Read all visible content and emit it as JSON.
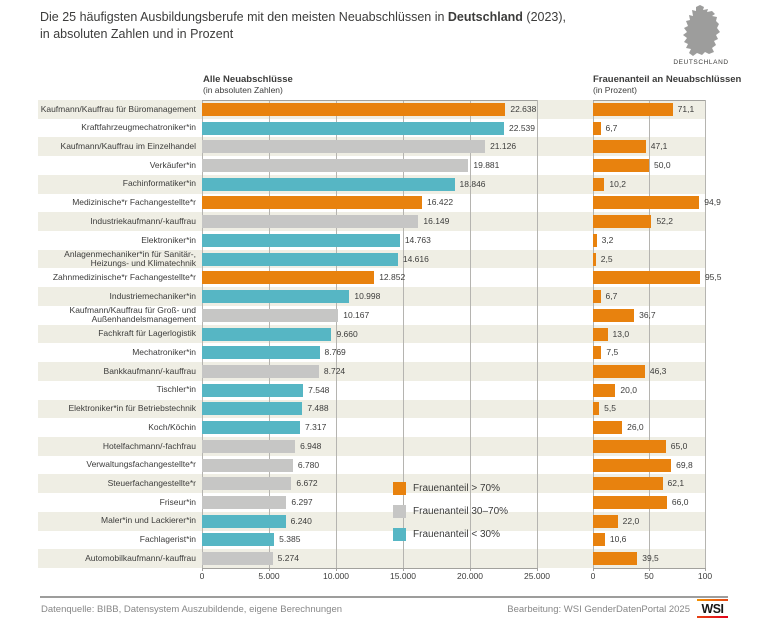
{
  "header": {
    "title_part1": "Die 25 häufigsten Ausbildungsberufe mit den meisten Neuabschlüssen in",
    "title_bold": "Deutschland",
    "title_part2": "(2023),",
    "title_line2": "in absoluten Zahlen und in Prozent",
    "region_label": "DEUTSCHLAND"
  },
  "chart_data": {
    "type": "bar",
    "orientation": "horizontal",
    "title": "Die 25 häufigsten Ausbildungsberufe mit den meisten Neuabschlüssen in Deutschland (2023), in absoluten Zahlen und in Prozent",
    "categories": [
      "Kaufmann/Kauffrau für Büromanagement",
      "Kraftfahrzeugmechatroniker*in",
      "Kaufmann/Kauffrau im Einzelhandel",
      "Verkäufer*in",
      "Fachinformatiker*in",
      "Medizinische*r Fachangestellte*r",
      "Industriekaufmann/-kauffrau",
      "Elektroniker*in",
      "Anlagenmechaniker*in für Sanitär-,\nHeizungs- und Klimatechnik",
      "Zahnmedizinische*r Fachangestellte*r",
      "Industriemechaniker*in",
      "Kaufmann/Kauffrau für Groß- und\nAußenhandelsmanagement",
      "Fachkraft für Lagerlogistik",
      "Mechatroniker*in",
      "Bankkaufmann/-kauffrau",
      "Tischler*in",
      "Elektroniker*in für Betriebstechnik",
      "Koch/Köchin",
      "Hotelfachmann/-fachfrau",
      "Verwaltungsfachangestellte*r",
      "Steuerfachangestellte*r",
      "Friseur*in",
      "Maler*in und Lackierer*in",
      "Fachlagerist*in",
      "Automobilkaufmann/-kauffrau"
    ],
    "groups": [
      "high",
      "low",
      "mid",
      "mid",
      "low",
      "high",
      "mid",
      "low",
      "low",
      "high",
      "low",
      "mid",
      "low",
      "low",
      "mid",
      "low",
      "low",
      "low",
      "mid",
      "mid",
      "mid",
      "mid",
      "low",
      "low",
      "mid"
    ],
    "group_colors": {
      "high": "#e8820e",
      "mid": "#c6c6c5",
      "low": "#56b6c4"
    },
    "series": [
      {
        "name": "Alle Neuabschlüsse",
        "subtitle": "(in absoluten Zahlen)",
        "values": [
          22638,
          22539,
          21126,
          19881,
          18846,
          16422,
          16149,
          14763,
          14616,
          12852,
          10998,
          10167,
          9660,
          8769,
          8724,
          7548,
          7488,
          7317,
          6948,
          6780,
          6672,
          6297,
          6240,
          5385,
          5274
        ],
        "value_labels": [
          "22.638",
          "22.539",
          "21.126",
          "19.881",
          "18.846",
          "16.422",
          "16.149",
          "14.763",
          "14.616",
          "12.852",
          "10.998",
          "10.167",
          "9.660",
          "8.769",
          "8.724",
          "7.548",
          "7.488",
          "7.317",
          "6.948",
          "6.780",
          "6.672",
          "6.297",
          "6.240",
          "5.385",
          "5.274"
        ],
        "xlim": [
          0,
          25000
        ],
        "ticks": [
          "0",
          "5.000",
          "10.000",
          "15.000",
          "20.000",
          "25.000"
        ]
      },
      {
        "name": "Frauenanteil an Neuabschlüssen",
        "subtitle": "(in Prozent)",
        "values": [
          71.1,
          6.7,
          47.1,
          50.0,
          10.2,
          94.9,
          52.2,
          3.2,
          2.5,
          95.5,
          6.7,
          36.7,
          13.0,
          7.5,
          46.3,
          20.0,
          5.5,
          26.0,
          65.0,
          69.8,
          62.1,
          66.0,
          22.0,
          10.6,
          39.5
        ],
        "value_labels": [
          "71,1",
          "6,7",
          "47,1",
          "50,0",
          "10,2",
          "94,9",
          "52,2",
          "3,2",
          "2,5",
          "95,5",
          "6,7",
          "36,7",
          "13,0",
          "7,5",
          "46,3",
          "20,0",
          "5,5",
          "26,0",
          "65,0",
          "69,8",
          "62,1",
          "66,0",
          "22,0",
          "10,6",
          "39,5"
        ],
        "xlim": [
          0,
          100
        ],
        "ticks": [
          "0",
          "50",
          "100"
        ],
        "color": "#e8820e"
      }
    ],
    "legend": [
      {
        "label": "Frauenanteil > 70%",
        "color": "#e8820e"
      },
      {
        "label": "Frauenanteil 30–70%",
        "color": "#c6c6c5"
      },
      {
        "label": "Frauenanteil < 30%",
        "color": "#56b6c4"
      }
    ],
    "legend_position": "bottom-center-left-panel",
    "grid": true,
    "stripe_color": "#efeee4"
  },
  "footer": {
    "source": "Datenquelle: BIBB, Datensystem Auszubildende, eigene Berechnungen",
    "editing": "Bearbeitung: WSI GenderDatenPortal 2025",
    "logo_text": "WSI"
  }
}
